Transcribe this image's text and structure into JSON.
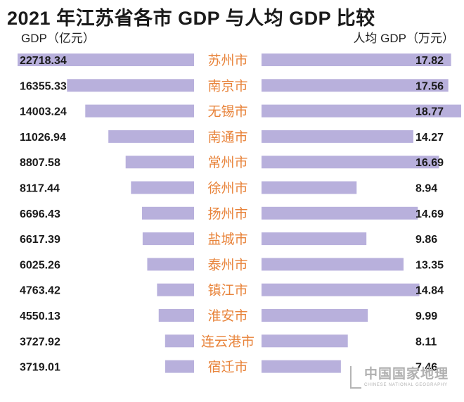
{
  "title": "2021 年江苏省各市 GDP 与人均 GDP 比较",
  "watermark": {
    "cn": "中国国家地理",
    "en": "CHINESE NATIONAL GEOGRAPHY"
  },
  "colors": {
    "bar": "#b8b0dc",
    "city_label": "#e8833a",
    "value_text": "#1a1a1a"
  },
  "chart_data": {
    "type": "bar",
    "layout": "back-to-back horizontal bars",
    "categories": [
      "苏州市",
      "南京市",
      "无锡市",
      "南通市",
      "常州市",
      "徐州市",
      "扬州市",
      "盐城市",
      "泰州市",
      "镇江市",
      "淮安市",
      "连云港市",
      "宿迁市"
    ],
    "series": [
      {
        "name": "GDP（亿元）",
        "direction": "left",
        "values": [
          22718.34,
          16355.33,
          14003.24,
          11026.94,
          8807.58,
          8117.44,
          6696.43,
          6617.39,
          6025.26,
          4763.42,
          4550.13,
          3727.92,
          3719.01
        ],
        "labels": [
          "22718.34",
          "16355.33",
          "14003.24",
          "11026.94",
          "8807.58",
          "8117.44",
          "6696.43",
          "6617.39",
          "6025.26",
          "4763.42",
          "4550.13",
          "3727.92",
          "3719.01"
        ]
      },
      {
        "name": "人均 GDP（万元）",
        "direction": "right",
        "values": [
          17.82,
          17.56,
          18.77,
          14.27,
          16.69,
          8.94,
          14.69,
          9.86,
          13.35,
          14.84,
          9.99,
          8.11,
          7.46
        ],
        "labels": [
          "17.82",
          "17.56",
          "18.77",
          "14.27",
          "16.69",
          "8.94",
          "14.69",
          "9.86",
          "13.35",
          "14.84",
          "9.99",
          "8.11",
          "7.46"
        ]
      }
    ],
    "left_axis_label": "GDP（亿元）",
    "right_axis_label": "人均 GDP（万元）",
    "grid": false,
    "legend": "none"
  }
}
